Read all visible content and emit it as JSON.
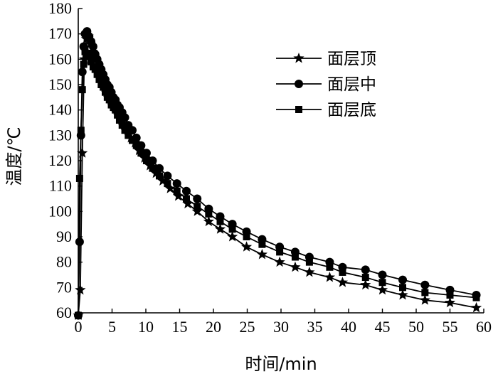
{
  "chart_data": {
    "type": "line",
    "title": "",
    "xlabel": "时间/min",
    "ylabel": "温度/℃",
    "xlim": [
      0,
      60
    ],
    "ylim": [
      60,
      180
    ],
    "xticks": [
      0,
      5,
      10,
      15,
      20,
      25,
      30,
      35,
      40,
      45,
      50,
      55,
      60
    ],
    "yticks": [
      60,
      70,
      80,
      90,
      100,
      110,
      120,
      130,
      140,
      150,
      160,
      170,
      180
    ],
    "grid": false,
    "legend_position": "top-right",
    "series": [
      {
        "name": "面层顶",
        "marker": "star",
        "x": [
          0.0,
          0.3,
          0.6,
          0.9,
          1.2,
          1.5,
          1.8,
          2.1,
          2.4,
          2.7,
          3.0,
          3.3,
          3.6,
          3.9,
          4.2,
          4.5,
          4.8,
          5.1,
          5.4,
          5.7,
          6.0,
          6.4,
          6.8,
          7.3,
          7.8,
          8.4,
          9.0,
          9.8,
          10.6,
          11.5,
          12.5,
          13.6,
          14.8,
          16.2,
          17.6,
          19.3,
          21.0,
          22.8,
          24.9,
          27.2,
          29.8,
          32.1,
          34.2,
          37.2,
          39.1,
          42.5,
          45.0,
          48.0,
          51.3,
          55.0,
          58.9
        ],
        "y": [
          59,
          69,
          123,
          160,
          168,
          169,
          166,
          163,
          160,
          157,
          155,
          153,
          151,
          149,
          147,
          146,
          144,
          143,
          141,
          140,
          139,
          136,
          134,
          132,
          129,
          127,
          124,
          121,
          118,
          115,
          112,
          109,
          106,
          103,
          100,
          96,
          93,
          90,
          86,
          83,
          80,
          78,
          76,
          74,
          72,
          71,
          69,
          67,
          65,
          64,
          62
        ]
      },
      {
        "name": "面层中",
        "marker": "circle",
        "x": [
          0.0,
          0.2,
          0.4,
          0.6,
          0.8,
          1.0,
          1.3,
          1.6,
          1.9,
          2.2,
          2.5,
          2.8,
          3.1,
          3.4,
          3.7,
          4.0,
          4.3,
          4.6,
          4.9,
          5.2,
          5.5,
          5.8,
          6.1,
          6.5,
          6.9,
          7.4,
          8.0,
          8.6,
          9.3,
          10.1,
          11.0,
          12.0,
          13.2,
          14.6,
          16.0,
          17.6,
          19.3,
          21.0,
          22.8,
          24.9,
          27.2,
          29.8,
          32.1,
          34.2,
          37.2,
          39.1,
          42.5,
          45.0,
          48.0,
          51.3,
          55.0,
          58.9
        ],
        "y": [
          59,
          88,
          130,
          155,
          165,
          170,
          171,
          169,
          167,
          165,
          162,
          160,
          158,
          156,
          154,
          152,
          150,
          149,
          147,
          145,
          144,
          142,
          141,
          139,
          137,
          134,
          132,
          129,
          126,
          123,
          120,
          117,
          114,
          111,
          108,
          105,
          101,
          98,
          95,
          92,
          89,
          86,
          84,
          82,
          80,
          78,
          77,
          75,
          73,
          71,
          69,
          67
        ]
      },
      {
        "name": "面层底",
        "marker": "square",
        "x": [
          0.0,
          0.2,
          0.4,
          0.6,
          0.8,
          1.0,
          1.3,
          1.6,
          1.9,
          2.2,
          2.5,
          2.8,
          3.1,
          3.4,
          3.7,
          4.0,
          4.3,
          4.6,
          4.9,
          5.2,
          5.5,
          5.8,
          6.1,
          6.5,
          6.9,
          7.4,
          8.0,
          8.6,
          9.3,
          10.1,
          11.0,
          12.0,
          13.2,
          14.6,
          16.0,
          17.6,
          19.3,
          21.0,
          22.8,
          24.9,
          27.2,
          29.8,
          32.1,
          34.2,
          37.2,
          39.1,
          42.5,
          45.0,
          48.0,
          51.3,
          55.0,
          58.9
        ],
        "y": [
          59,
          113,
          132,
          148,
          158,
          163,
          162,
          161,
          159,
          157,
          156,
          154,
          152,
          150,
          149,
          147,
          145,
          144,
          142,
          141,
          140,
          138,
          136,
          134,
          132,
          130,
          128,
          126,
          123,
          120,
          117,
          114,
          111,
          108,
          105,
          102,
          99,
          96,
          93,
          90,
          87,
          84,
          82,
          80,
          78,
          76,
          74,
          72,
          70,
          68,
          67,
          66
        ]
      }
    ]
  }
}
